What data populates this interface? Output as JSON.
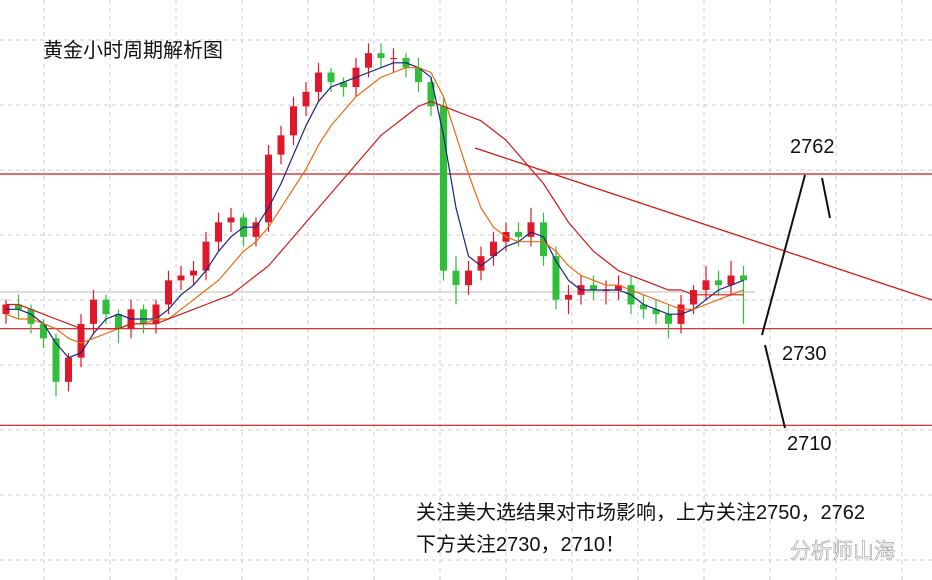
{
  "chart_data": {
    "type": "candlestick",
    "title": "黄金小时周期解析图",
    "annotation": [
      "关注美大选结果对市场影响，上方关注2750，2762",
      "下方关注2730，2710！"
    ],
    "watermark": "分析师山海",
    "up_color": "#e0182b",
    "down_color": "#2fbf3a",
    "open": [
      2733,
      2735,
      2734,
      2731,
      2728,
      2719,
      2724,
      2731,
      2736,
      2733,
      2730,
      2734,
      2731,
      2735,
      2740,
      2741,
      2742,
      2748,
      2752,
      2753,
      2749,
      2752,
      2766,
      2770,
      2776,
      2779,
      2783,
      2781,
      2780,
      2784,
      2787,
      2786,
      2786,
      2784,
      2781,
      2776,
      2742,
      2739,
      2742,
      2745,
      2748,
      2750,
      2749,
      2752,
      2745,
      2736,
      2737,
      2739,
      2738,
      2738,
      2739,
      2735,
      2734,
      2733,
      2731,
      2735,
      2738,
      2740,
      2739,
      2741
    ],
    "high": [
      2736,
      2737,
      2735,
      2732,
      2729,
      2725,
      2733,
      2738,
      2737,
      2734,
      2736,
      2735,
      2736,
      2742,
      2743,
      2744,
      2750,
      2754,
      2755,
      2754,
      2753,
      2768,
      2772,
      2778,
      2781,
      2785,
      2784,
      2782,
      2786,
      2789,
      2789,
      2788,
      2787,
      2786,
      2782,
      2778,
      2745,
      2744,
      2747,
      2750,
      2752,
      2752,
      2755,
      2754,
      2747,
      2739,
      2741,
      2741,
      2740,
      2741,
      2741,
      2737,
      2736,
      2735,
      2737,
      2739,
      2743,
      2742,
      2744,
      2743
    ],
    "low": [
      2731,
      2732,
      2729,
      2726,
      2716,
      2717,
      2722,
      2729,
      2731,
      2727,
      2728,
      2729,
      2729,
      2733,
      2738,
      2739,
      2740,
      2746,
      2750,
      2747,
      2747,
      2750,
      2764,
      2768,
      2774,
      2777,
      2779,
      2778,
      2778,
      2782,
      2784,
      2783,
      2782,
      2779,
      2774,
      2740,
      2735,
      2737,
      2740,
      2743,
      2746,
      2747,
      2747,
      2743,
      2734,
      2733,
      2735,
      2736,
      2735,
      2736,
      2733,
      2732,
      2731,
      2728,
      2729,
      2733,
      2736,
      2737,
      2737,
      2731
    ],
    "close": [
      2735,
      2734,
      2731,
      2728,
      2719,
      2724,
      2731,
      2736,
      2733,
      2730,
      2734,
      2731,
      2735,
      2740,
      2741,
      2742,
      2748,
      2752,
      2753,
      2749,
      2752,
      2766,
      2770,
      2776,
      2779,
      2783,
      2781,
      2780,
      2784,
      2787,
      2786,
      2786,
      2784,
      2781,
      2776,
      2742,
      2739,
      2742,
      2745,
      2748,
      2750,
      2749,
      2752,
      2745,
      2736,
      2737,
      2739,
      2738,
      2738,
      2739,
      2735,
      2734,
      2733,
      2731,
      2735,
      2738,
      2740,
      2739,
      2741,
      2740
    ],
    "series": [
      {
        "color": "#1a237e",
        "values": [
          2734,
          2734,
          2733,
          2731,
          2727,
          2724,
          2725,
          2729,
          2732,
          2733,
          2732,
          2732,
          2732,
          2734,
          2737,
          2739,
          2742,
          2746,
          2749,
          2751,
          2751,
          2755,
          2760,
          2766,
          2772,
          2777,
          2780,
          2781,
          2782,
          2783,
          2784,
          2785,
          2785,
          2784,
          2782,
          2770,
          2755,
          2745,
          2743,
          2745,
          2747,
          2748,
          2750,
          2749,
          2744,
          2740,
          2738,
          2738,
          2738,
          2738,
          2737,
          2735,
          2734,
          2733,
          2733,
          2734,
          2736,
          2738,
          2739,
          2740
        ]
      },
      {
        "color": "#e86a10",
        "values": [
          2733,
          2732,
          2732,
          2731,
          2730,
          2728,
          2727,
          2728,
          2729,
          2730,
          2731,
          2731,
          2732,
          2732,
          2734,
          2736,
          2738,
          2740,
          2743,
          2746,
          2748,
          2751,
          2755,
          2759,
          2763,
          2768,
          2772,
          2775,
          2778,
          2780,
          2782,
          2783,
          2784,
          2784,
          2783,
          2778,
          2770,
          2762,
          2755,
          2751,
          2749,
          2748,
          2748,
          2748,
          2746,
          2743,
          2741,
          2740,
          2739,
          2739,
          2738,
          2737,
          2736,
          2735,
          2734,
          2734,
          2735,
          2736,
          2737,
          2738
        ]
      },
      {
        "color": "#d01818",
        "values": [
          2735,
          2735,
          2734,
          2733,
          2732,
          2731,
          2730,
          2730,
          2730,
          2730,
          2731,
          2731,
          2731,
          2732,
          2733,
          2734,
          2735,
          2736,
          2737,
          2739,
          2741,
          2743,
          2746,
          2749,
          2752,
          2755,
          2758,
          2761,
          2764,
          2767,
          2770,
          2772,
          2774,
          2776,
          2777,
          2776,
          2775,
          2774,
          2773,
          2771,
          2769,
          2766,
          2763,
          2760,
          2756,
          2752,
          2749,
          2746,
          2744,
          2742,
          2741,
          2740,
          2739,
          2738,
          2738,
          2737,
          2737,
          2737,
          2737,
          2737
        ]
      }
    ],
    "levels": [
      2762,
      2730,
      2710
    ],
    "level_color": "#d01818",
    "ylim": [
      2678,
      2798
    ],
    "grid": true
  }
}
